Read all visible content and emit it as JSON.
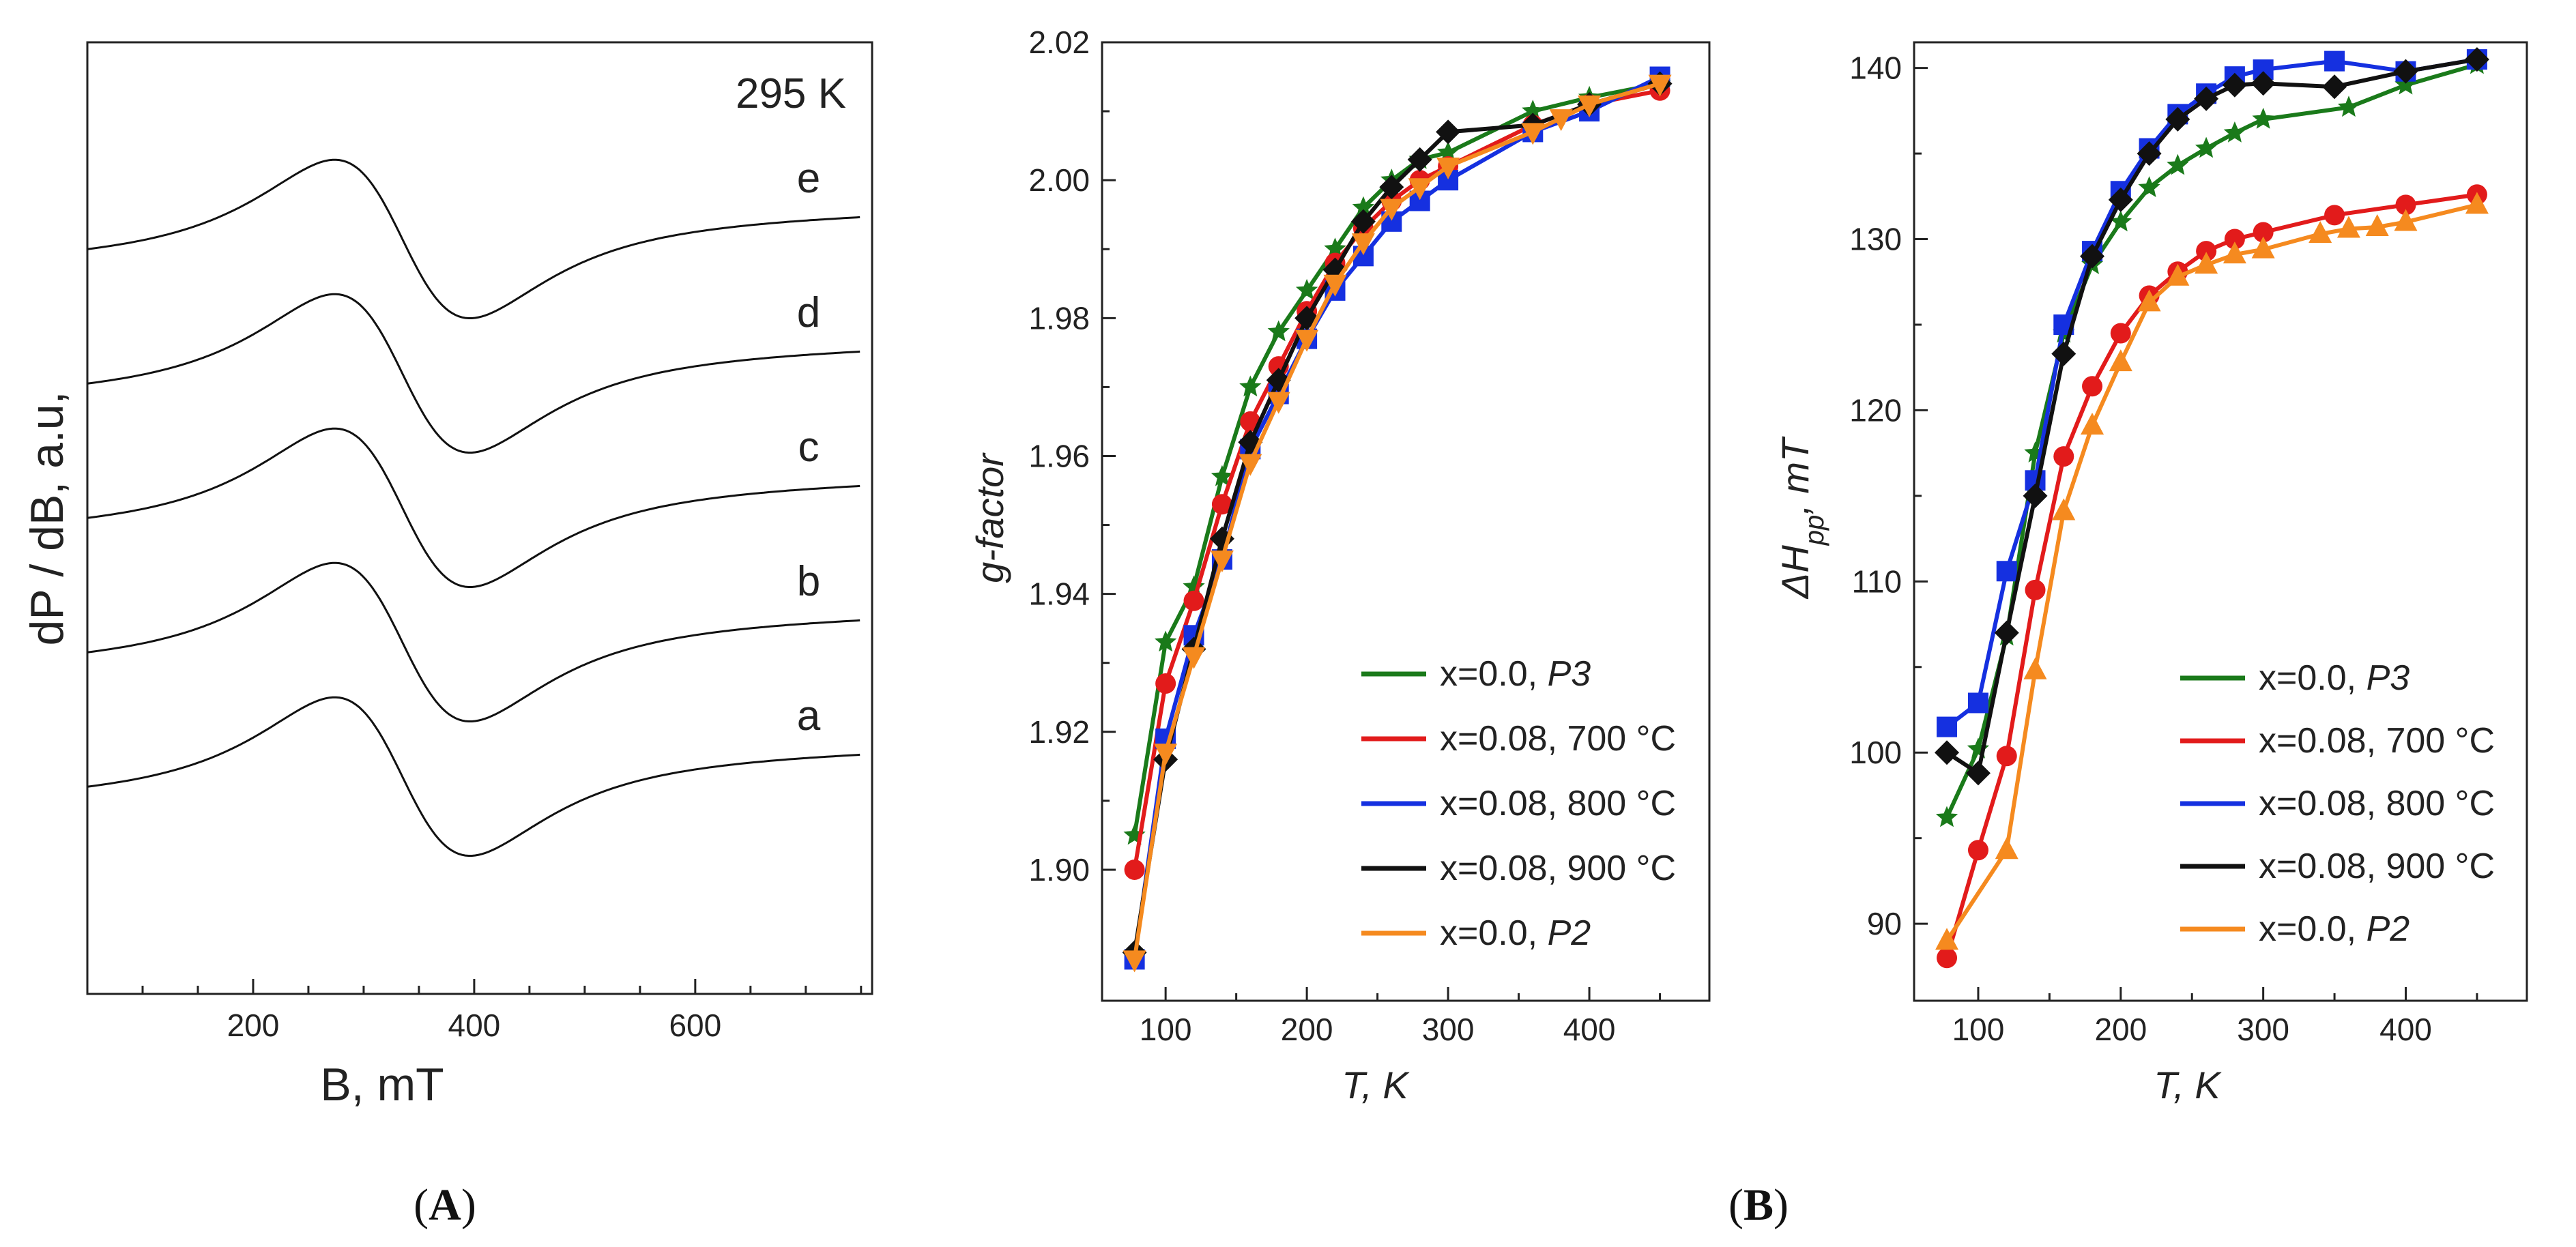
{
  "panel_labels": {
    "a": "(",
    "A": "A",
    "close_a": ")",
    "b": "(",
    "B": "B",
    "close_b": ")"
  },
  "chart_data": [
    {
      "type": "line",
      "id": "spectra",
      "title": "",
      "xlabel": "B, mT",
      "ylabel": "dP / dB, a.u,",
      "xlim": [
        50,
        760
      ],
      "xticks": [
        200,
        400,
        600
      ],
      "annotation": "295 K",
      "series": [
        {
          "name": "a",
          "offset": 0
        },
        {
          "name": "b",
          "offset": 1
        },
        {
          "name": "c",
          "offset": 2
        },
        {
          "name": "d",
          "offset": 3
        },
        {
          "name": "e",
          "offset": 4
        }
      ],
      "curve_params": {
        "center": 335,
        "width": 65,
        "base_start": 0.0,
        "base_end": 0.0
      }
    },
    {
      "type": "line",
      "id": "gfactor",
      "title": "",
      "xlabel": "T, K",
      "ylabel": "g-factor",
      "xlim": [
        55,
        485
      ],
      "ylim": [
        1.881,
        2.02
      ],
      "xticks": [
        100,
        200,
        300,
        400
      ],
      "yticks": [
        1.9,
        1.92,
        1.94,
        1.96,
        1.98,
        2.0,
        2.02
      ],
      "yticklabels": [
        "1.90",
        "1.92",
        "1.94",
        "1.96",
        "1.98",
        "2.00",
        "2.02"
      ],
      "series": [
        {
          "name": "x=0.0, P3",
          "legend_plain": "x=0.0, ",
          "legend_italic": "P3",
          "color": "#1a7a1a",
          "marker": "star",
          "x": [
            78,
            100,
            120,
            140,
            160,
            180,
            200,
            220,
            240,
            260,
            280,
            300,
            360,
            400,
            450
          ],
          "y": [
            1.905,
            1.933,
            1.941,
            1.957,
            1.97,
            1.978,
            1.984,
            1.99,
            1.996,
            2.0,
            2.003,
            2.004,
            2.01,
            2.012,
            2.014
          ]
        },
        {
          "name": "x=0.08, 700 °C",
          "legend_plain": "x=0.08, 700 °C",
          "legend_italic": "",
          "color": "#e21b1b",
          "marker": "circle",
          "x": [
            78,
            100,
            120,
            140,
            160,
            180,
            200,
            220,
            240,
            260,
            280,
            300,
            360,
            400,
            450
          ],
          "y": [
            1.9,
            1.927,
            1.939,
            1.953,
            1.965,
            1.973,
            1.981,
            1.988,
            1.993,
            1.997,
            2.0,
            2.002,
            2.008,
            2.011,
            2.013
          ]
        },
        {
          "name": "x=0.08, 800 °C",
          "legend_plain": "x=0.08, 800 °C",
          "legend_italic": "",
          "color": "#1530e0",
          "marker": "square",
          "x": [
            78,
            100,
            120,
            140,
            160,
            180,
            200,
            220,
            240,
            260,
            280,
            300,
            360,
            400,
            450
          ],
          "y": [
            1.887,
            1.919,
            1.934,
            1.945,
            1.961,
            1.969,
            1.977,
            1.984,
            1.989,
            1.994,
            1.997,
            2.0,
            2.007,
            2.01,
            2.015
          ]
        },
        {
          "name": "x=0.08, 900 °C",
          "legend_plain": "x=0.08, 900 °C",
          "legend_italic": "",
          "color": "#111111",
          "marker": "diamond",
          "x": [
            78,
            100,
            120,
            140,
            160,
            180,
            200,
            220,
            240,
            260,
            280,
            300,
            360,
            400,
            450
          ],
          "y": [
            1.888,
            1.916,
            1.932,
            1.948,
            1.962,
            1.971,
            1.98,
            1.987,
            1.994,
            1.999,
            2.003,
            2.007,
            2.008,
            2.011,
            2.014
          ]
        },
        {
          "name": "x=0.0, P2",
          "legend_plain": "x=0.0, ",
          "legend_italic": "P2",
          "color": "#f58a1f",
          "marker": "triangle-down",
          "x": [
            78,
            100,
            120,
            140,
            160,
            180,
            200,
            220,
            240,
            260,
            280,
            300,
            360,
            380,
            400,
            450
          ],
          "y": [
            1.887,
            1.917,
            1.931,
            1.945,
            1.959,
            1.968,
            1.977,
            1.985,
            1.991,
            1.996,
            1.999,
            2.002,
            2.007,
            2.009,
            2.011,
            2.014
          ]
        }
      ]
    },
    {
      "type": "line",
      "id": "linewidth",
      "title": "",
      "xlabel": "T, K",
      "ylabel": "ΔH",
      "ylabel_sub": "pp",
      "ylabel_suffix": ", mT",
      "xlim": [
        55,
        485
      ],
      "ylim": [
        85.5,
        141.5
      ],
      "xticks": [
        100,
        200,
        300,
        400
      ],
      "yticks": [
        90,
        100,
        110,
        120,
        130,
        140
      ],
      "yticklabels": [
        "90",
        "100",
        "110",
        "120",
        "130",
        "140"
      ],
      "series": [
        {
          "name": "x=0.0, P3",
          "legend_plain": "x=0.0, ",
          "legend_italic": "P3",
          "color": "#1a7a1a",
          "marker": "star",
          "x": [
            78,
            100,
            120,
            140,
            160,
            180,
            200,
            220,
            240,
            260,
            280,
            300,
            360,
            400,
            450
          ],
          "y": [
            96.2,
            100.2,
            106.8,
            117.5,
            124.5,
            128.5,
            131.0,
            133.0,
            134.3,
            135.3,
            136.2,
            137.0,
            137.7,
            139.0,
            140.2
          ]
        },
        {
          "name": "x=0.08, 700 °C",
          "legend_plain": "x=0.08, 700 °C",
          "legend_italic": "",
          "color": "#e21b1b",
          "marker": "circle",
          "x": [
            78,
            100,
            120,
            140,
            160,
            180,
            200,
            220,
            240,
            260,
            280,
            300,
            350,
            400,
            450
          ],
          "y": [
            88.0,
            94.3,
            99.8,
            109.5,
            117.3,
            121.4,
            124.5,
            126.7,
            128.1,
            129.3,
            130.0,
            130.4,
            131.4,
            132.0,
            132.6
          ]
        },
        {
          "name": "x=0.08, 800 °C",
          "legend_plain": "x=0.08, 800 °C",
          "legend_italic": "",
          "color": "#1530e0",
          "marker": "square",
          "x": [
            78,
            100,
            120,
            140,
            160,
            180,
            200,
            220,
            240,
            260,
            280,
            300,
            350,
            400,
            450
          ],
          "y": [
            101.5,
            102.9,
            110.6,
            115.9,
            125.0,
            129.3,
            132.8,
            135.3,
            137.3,
            138.5,
            139.5,
            139.9,
            140.4,
            139.8,
            140.5
          ]
        },
        {
          "name": "x=0.08, 900 °C",
          "legend_plain": "x=0.08, 900 °C",
          "legend_italic": "",
          "color": "#111111",
          "marker": "diamond",
          "x": [
            78,
            100,
            120,
            140,
            160,
            180,
            200,
            220,
            240,
            260,
            280,
            300,
            350,
            400,
            450
          ],
          "y": [
            100.0,
            98.8,
            107.0,
            115.0,
            123.3,
            129.0,
            132.3,
            135.0,
            137.0,
            138.2,
            139.0,
            139.1,
            138.9,
            139.8,
            140.5
          ]
        },
        {
          "name": "x=0.0, P2",
          "legend_plain": "x=0.0, ",
          "legend_italic": "P2",
          "color": "#f58a1f",
          "marker": "triangle-up",
          "x": [
            78,
            120,
            140,
            160,
            180,
            200,
            220,
            240,
            260,
            280,
            300,
            340,
            360,
            380,
            400,
            450
          ],
          "y": [
            89.0,
            94.3,
            104.8,
            114.1,
            119.1,
            122.8,
            126.3,
            127.8,
            128.5,
            129.1,
            129.4,
            130.3,
            130.6,
            130.7,
            131.0,
            132.0
          ]
        }
      ]
    }
  ]
}
